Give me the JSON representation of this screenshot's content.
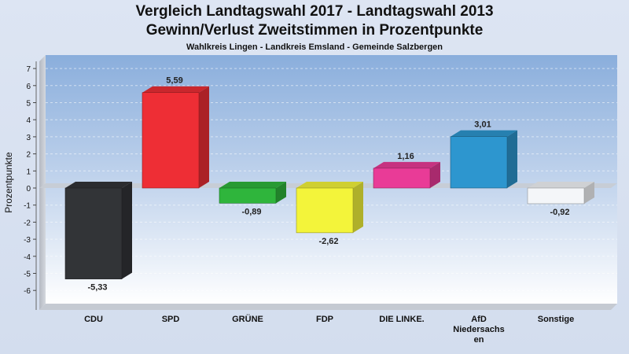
{
  "header": {
    "title_line1": "Vergleich Landtagswahl 2017 - Landtagswahl 2013",
    "title_line2": "Gewinn/Verlust Zweitstimmen in Prozentpunkte",
    "subtitle": "Wahlkreis Lingen - Landkreis Emsland - Gemeinde Salzbergen"
  },
  "chart_data": {
    "type": "bar",
    "title": "Vergleich Landtagswahl 2017 - Landtagswahl 2013 Gewinn/Verlust Zweitstimmen in Prozentpunkte",
    "subtitle": "Wahlkreis Lingen - Landkreis Emsland - Gemeinde Salzbergen",
    "xlabel": "",
    "ylabel": "Prozentpunkte",
    "ylim": [
      -7,
      7
    ],
    "yticks": [
      -6,
      -5,
      -4,
      -3,
      -2,
      -1,
      0,
      1,
      2,
      3,
      4,
      5,
      6,
      7
    ],
    "grid": true,
    "categories": [
      "CDU",
      "SPD",
      "GRÜNE",
      "FDP",
      "DIE LINKE.",
      "AfD Niedersachsen",
      "Sonstige"
    ],
    "category_label_lines": [
      [
        "CDU"
      ],
      [
        "SPD"
      ],
      [
        "GRÜNE"
      ],
      [
        "FDP"
      ],
      [
        "DIE LINKE."
      ],
      [
        "AfD",
        "Niedersachs",
        "en"
      ],
      [
        "Sonstige"
      ]
    ],
    "values": [
      -5.33,
      5.59,
      -0.89,
      -2.62,
      1.16,
      3.01,
      -0.92
    ],
    "value_labels": [
      "-5,33",
      "5,59",
      "-0,89",
      "-2,62",
      "1,16",
      "3,01",
      "-0,92"
    ],
    "colors": [
      "#323437",
      "#ee2e35",
      "#2fb53c",
      "#f3f43a",
      "#e93b97",
      "#2d96cf",
      "#f4f6f9"
    ]
  }
}
